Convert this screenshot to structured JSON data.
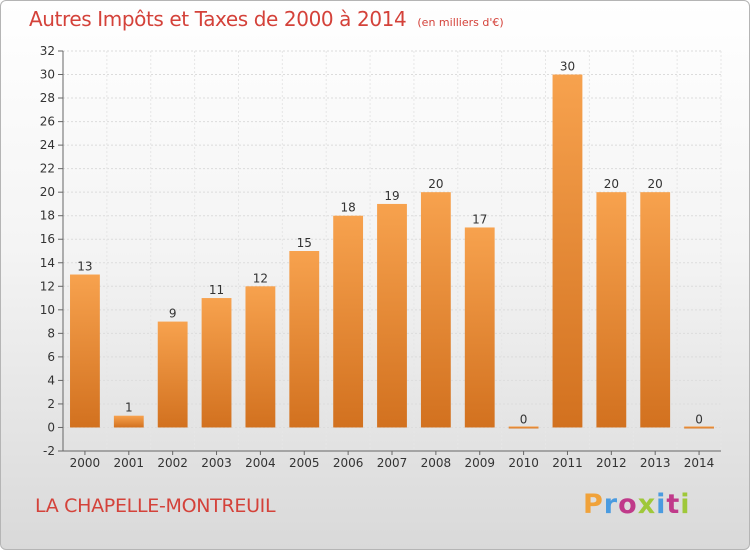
{
  "header": {
    "title": "Autres Impôts et Taxes de 2000 à 2014",
    "subtitle": "(en milliers d'€)"
  },
  "footer": {
    "commune": "LA CHAPELLE-MONTREUIL",
    "logo": "Proxiti"
  },
  "colors": {
    "accent_text": "#d4423a",
    "bar_light": "#f7a24e",
    "bar_dark": "#d2711f",
    "logo_letters": [
      "#f0a23a",
      "#4a9be0",
      "#c03a8a",
      "#9fc83a",
      "#4a9be0",
      "#c03a8a",
      "#9fc83a"
    ]
  },
  "chart_data": {
    "type": "bar",
    "title": "Autres Impôts et Taxes de 2000 à 2014",
    "subtitle": "(en milliers d'€)",
    "categories": [
      "2000",
      "2001",
      "2002",
      "2003",
      "2004",
      "2005",
      "2006",
      "2007",
      "2008",
      "2009",
      "2010",
      "2011",
      "2012",
      "2013",
      "2014"
    ],
    "values": [
      13,
      1,
      9,
      11,
      12,
      15,
      18,
      19,
      20,
      17,
      0,
      30,
      20,
      20,
      0
    ],
    "data_labels": [
      "13",
      "1",
      "9",
      "11",
      "12",
      "15",
      "18",
      "19",
      "20",
      "17",
      "0",
      "30",
      "20",
      "20",
      "0"
    ],
    "ylim": [
      -2,
      32
    ],
    "yticks": [
      -2,
      0,
      2,
      4,
      6,
      8,
      10,
      12,
      14,
      16,
      18,
      20,
      22,
      24,
      26,
      28,
      30,
      32
    ],
    "grid": true,
    "xlabel": "",
    "ylabel": ""
  }
}
